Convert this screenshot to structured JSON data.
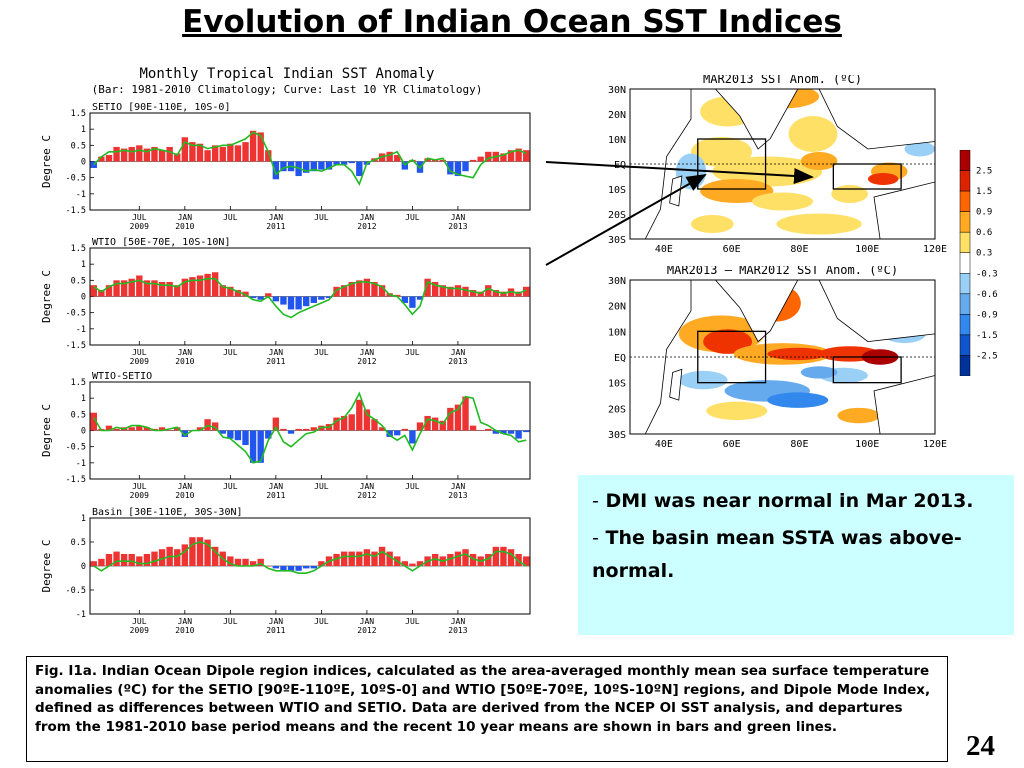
{
  "slide": {
    "title": "Evolution of Indian Ocean SST Indices",
    "number": "24"
  },
  "bullets": [
    {
      "dash": "-",
      "text": "DMI was near normal in Mar 2013."
    },
    {
      "dash": "-",
      "text": "The basin mean SSTA was above-normal."
    }
  ],
  "caption": "Fig. I1a. Indian Ocean Dipole region indices, calculated as the area-averaged monthly mean sea surface temperature anomalies (ºC) for the SETIO [90ºE-110ºE, 10ºS-0] and WTIO [50ºE-70ºE, 10ºS-10ºN] regions, and Dipole Mode Index, defined as differences between WTIO and SETIO. Data are derived from the NCEP OI SST analysis, and departures from the 1981-2010 base period means and the recent 10 year means are shown in bars and green lines.",
  "colors": {
    "positive_bar": "#ee3333",
    "negative_bar": "#2255ee",
    "curve": "#22bb22",
    "bullet_box": "#ccffff"
  },
  "chart_data": [
    {
      "type": "bar",
      "title": "Monthly Tropical Indian SST Anomaly",
      "subtitle": "(Bar: 1981-2010 Climatology; Curve: Last 10 YR Climatology)",
      "panel_label": "SETIO [90E-110E, 10S-0]",
      "ylabel": "Degree C",
      "ylim": [
        -1.5,
        1.5
      ],
      "yticks": [
        "1.5",
        "1",
        "0.5",
        "0",
        "-0.5",
        "-1",
        "-1.5"
      ],
      "xticks": [
        {
          "month": "JUL",
          "year": "2009"
        },
        {
          "month": "JAN",
          "year": "2010"
        },
        {
          "month": "JUL",
          "year": ""
        },
        {
          "month": "JAN",
          "year": "2011"
        },
        {
          "month": "JUL",
          "year": ""
        },
        {
          "month": "JAN",
          "year": "2012"
        },
        {
          "month": "JUL",
          "year": ""
        },
        {
          "month": "JAN",
          "year": "2013"
        }
      ],
      "x_start": "2009-01",
      "series": [
        {
          "values": [
            -0.2,
            0.15,
            0.2,
            0.45,
            0.4,
            0.45,
            0.5,
            0.4,
            0.45,
            0.35,
            0.45,
            0.25,
            0.75,
            0.6,
            0.55,
            0.35,
            0.5,
            0.45,
            0.55,
            0.5,
            0.6,
            0.95,
            0.9,
            0.35,
            -0.55,
            -0.3,
            -0.3,
            -0.45,
            -0.35,
            -0.3,
            -0.25,
            -0.25,
            -0.1,
            -0.1,
            -0.05,
            -0.45,
            -0.1,
            0.1,
            0.25,
            0.3,
            0.2,
            -0.25,
            0.05,
            -0.35,
            0.1,
            0.05,
            0.05,
            -0.4,
            -0.45,
            -0.3,
            0.05,
            0.15,
            0.3,
            0.3,
            0.25,
            0.35,
            0.4,
            0.35
          ]
        },
        {
          "values": [
            -0.1,
            0.15,
            0.3,
            0.3,
            0.35,
            0.3,
            0.35,
            0.3,
            0.4,
            0.35,
            0.3,
            0.2,
            0.6,
            0.5,
            0.5,
            0.4,
            0.45,
            0.5,
            0.5,
            0.6,
            0.7,
            0.9,
            0.8,
            0.3,
            -0.4,
            -0.2,
            -0.15,
            -0.2,
            -0.3,
            -0.25,
            -0.3,
            -0.2,
            -0.1,
            -0.1,
            -0.3,
            -0.7,
            -0.05,
            0.05,
            0.15,
            0.2,
            0.3,
            -0.1,
            0.05,
            -0.2,
            0.1,
            0.05,
            0.1,
            -0.3,
            -0.4,
            -0.45,
            -0.5,
            -0.1,
            0.1,
            0.15,
            0.2,
            0.3,
            0.35,
            0.25
          ]
        }
      ]
    },
    {
      "type": "bar",
      "panel_label": "WTIO [50E-70E, 10S-10N]",
      "ylabel": "Degree C",
      "ylim": [
        -1.5,
        1.5
      ],
      "yticks": [
        "1.5",
        "1",
        "0.5",
        "0",
        "-0.5",
        "-1",
        "-1.5"
      ],
      "xticks": [
        {
          "month": "JUL",
          "year": "2009"
        },
        {
          "month": "JAN",
          "year": "2010"
        },
        {
          "month": "JUL",
          "year": ""
        },
        {
          "month": "JAN",
          "year": "2011"
        },
        {
          "month": "JUL",
          "year": ""
        },
        {
          "month": "JAN",
          "year": "2012"
        },
        {
          "month": "JUL",
          "year": ""
        },
        {
          "month": "JAN",
          "year": "2013"
        }
      ],
      "x_start": "2009-01",
      "series": [
        {
          "values": [
            0.35,
            0.2,
            0.35,
            0.5,
            0.5,
            0.55,
            0.65,
            0.5,
            0.5,
            0.45,
            0.45,
            0.35,
            0.55,
            0.6,
            0.65,
            0.7,
            0.75,
            0.35,
            0.3,
            0.2,
            0.15,
            -0.05,
            -0.1,
            0.1,
            -0.15,
            -0.25,
            -0.4,
            -0.4,
            -0.3,
            -0.2,
            -0.1,
            -0.05,
            0.3,
            0.35,
            0.45,
            0.5,
            0.55,
            0.45,
            0.35,
            0.1,
            0.05,
            -0.2,
            -0.35,
            -0.1,
            0.55,
            0.45,
            0.35,
            0.3,
            0.35,
            0.3,
            0.2,
            0.15,
            0.35,
            0.2,
            0.15,
            0.25,
            0.15,
            0.3
          ]
        },
        {
          "values": [
            0.3,
            0.15,
            0.3,
            0.4,
            0.4,
            0.45,
            0.5,
            0.4,
            0.4,
            0.35,
            0.35,
            0.3,
            0.45,
            0.5,
            0.5,
            0.55,
            0.55,
            0.3,
            0.25,
            0.15,
            0.05,
            -0.1,
            -0.15,
            0.0,
            -0.3,
            -0.55,
            -0.65,
            -0.5,
            -0.4,
            -0.3,
            -0.2,
            -0.1,
            0.2,
            0.3,
            0.4,
            0.45,
            0.45,
            0.4,
            0.3,
            0.05,
            0.0,
            -0.25,
            -0.55,
            -0.3,
            0.45,
            0.35,
            0.3,
            0.25,
            0.25,
            0.2,
            0.15,
            0.1,
            0.25,
            0.15,
            0.1,
            0.15,
            0.1,
            0.2
          ]
        }
      ]
    },
    {
      "type": "bar",
      "panel_label": "WTIO-SETIO",
      "ylabel": "Degree C",
      "ylim": [
        -1.5,
        1.5
      ],
      "yticks": [
        "1.5",
        "1",
        "0.5",
        "0",
        "-0.5",
        "-1",
        "-1.5"
      ],
      "xticks": [
        {
          "month": "JUL",
          "year": "2009"
        },
        {
          "month": "JAN",
          "year": "2010"
        },
        {
          "month": "JUL",
          "year": ""
        },
        {
          "month": "JAN",
          "year": "2011"
        },
        {
          "month": "JUL",
          "year": ""
        },
        {
          "month": "JAN",
          "year": "2012"
        },
        {
          "month": "JUL",
          "year": ""
        },
        {
          "month": "JAN",
          "year": "2013"
        }
      ],
      "x_start": "2009-01",
      "series": [
        {
          "values": [
            0.55,
            0.05,
            0.15,
            0.05,
            0.1,
            0.1,
            0.15,
            0.1,
            0.05,
            0.1,
            0.0,
            0.1,
            -0.2,
            0.0,
            0.1,
            0.35,
            0.25,
            -0.1,
            -0.25,
            -0.3,
            -0.45,
            -1.0,
            -1.0,
            -0.25,
            0.4,
            0.05,
            -0.1,
            0.05,
            0.05,
            0.1,
            0.15,
            0.2,
            0.4,
            0.45,
            0.5,
            0.95,
            0.65,
            0.35,
            0.1,
            -0.2,
            -0.15,
            0.05,
            -0.4,
            0.25,
            0.45,
            0.4,
            0.3,
            0.7,
            0.8,
            1.05,
            0.15,
            0.0,
            0.05,
            -0.1,
            -0.1,
            -0.1,
            -0.25,
            -0.05
          ]
        },
        {
          "values": [
            0.4,
            0.0,
            0.0,
            0.1,
            0.05,
            0.15,
            0.15,
            0.1,
            0.0,
            0.0,
            0.05,
            0.1,
            -0.15,
            0.0,
            0.0,
            0.15,
            0.1,
            -0.2,
            -0.25,
            -0.45,
            -0.65,
            -1.0,
            -0.95,
            -0.3,
            0.1,
            -0.35,
            -0.5,
            -0.3,
            -0.1,
            -0.05,
            0.1,
            0.1,
            0.3,
            0.4,
            0.7,
            1.15,
            0.5,
            0.35,
            0.15,
            -0.15,
            -0.3,
            -0.15,
            -0.6,
            -0.1,
            0.35,
            0.3,
            0.2,
            0.55,
            0.65,
            1.05,
            1.0,
            0.25,
            0.15,
            0.0,
            -0.1,
            -0.15,
            -0.35,
            -0.3
          ]
        }
      ]
    },
    {
      "type": "bar",
      "panel_label": "Basin [30E-110E, 30S-30N]",
      "ylabel": "Degree C",
      "ylim": [
        -1,
        1
      ],
      "yticks": [
        "1",
        "0.5",
        "0",
        "-0.5",
        "-1"
      ],
      "xticks": [
        {
          "month": "JUL",
          "year": "2009"
        },
        {
          "month": "JAN",
          "year": "2010"
        },
        {
          "month": "JUL",
          "year": ""
        },
        {
          "month": "JAN",
          "year": "2011"
        },
        {
          "month": "JUL",
          "year": ""
        },
        {
          "month": "JAN",
          "year": "2012"
        },
        {
          "month": "JUL",
          "year": ""
        },
        {
          "month": "JAN",
          "year": "2013"
        }
      ],
      "x_start": "2009-01",
      "series": [
        {
          "values": [
            0.1,
            0.15,
            0.25,
            0.3,
            0.25,
            0.25,
            0.2,
            0.25,
            0.3,
            0.35,
            0.4,
            0.35,
            0.45,
            0.6,
            0.6,
            0.55,
            0.4,
            0.3,
            0.2,
            0.15,
            0.15,
            0.1,
            0.15,
            0.0,
            -0.05,
            -0.1,
            -0.1,
            -0.1,
            -0.05,
            -0.05,
            0.1,
            0.2,
            0.25,
            0.3,
            0.3,
            0.3,
            0.35,
            0.3,
            0.4,
            0.3,
            0.2,
            0.1,
            0.05,
            0.1,
            0.2,
            0.25,
            0.2,
            0.25,
            0.3,
            0.35,
            0.25,
            0.2,
            0.25,
            0.4,
            0.4,
            0.35,
            0.25,
            0.2
          ]
        },
        {
          "values": [
            0.0,
            -0.1,
            0.0,
            0.1,
            0.1,
            0.1,
            0.05,
            0.05,
            0.1,
            0.15,
            0.2,
            0.2,
            0.3,
            0.45,
            0.5,
            0.45,
            0.3,
            0.15,
            0.05,
            0.0,
            0.0,
            0.0,
            0.05,
            -0.05,
            -0.1,
            -0.1,
            -0.1,
            -0.15,
            -0.15,
            -0.1,
            0.0,
            0.1,
            0.15,
            0.2,
            0.2,
            0.2,
            0.25,
            0.2,
            0.3,
            0.2,
            0.1,
            0.0,
            -0.1,
            0.0,
            0.1,
            0.15,
            0.1,
            0.15,
            0.2,
            0.25,
            0.15,
            0.1,
            0.15,
            0.3,
            0.3,
            0.25,
            0.1,
            0.0
          ]
        }
      ]
    },
    {
      "type": "heatmap",
      "title": "MAR2013 SST Anom. (ºC)",
      "lat_labels": [
        "30N",
        "20N",
        "10N",
        "EQ",
        "10S",
        "20S",
        "30S"
      ],
      "lon_labels": [
        "40E",
        "60E",
        "80E",
        "100E",
        "120E"
      ],
      "boxes": [
        {
          "region": "WTIO",
          "lon": [
            50,
            70
          ],
          "lat": [
            -10,
            10
          ]
        },
        {
          "region": "SETIO",
          "lon": [
            90,
            110
          ],
          "lat": [
            -10,
            0
          ]
        }
      ]
    },
    {
      "type": "heatmap",
      "title": "MAR2013 – MAR2012 SST Anom. (ºC)",
      "lat_labels": [
        "30N",
        "20N",
        "10N",
        "EQ",
        "10S",
        "20S",
        "30S"
      ],
      "lon_labels": [
        "40E",
        "60E",
        "80E",
        "100E",
        "120E"
      ],
      "boxes": [
        {
          "region": "WTIO",
          "lon": [
            50,
            70
          ],
          "lat": [
            -10,
            10
          ]
        },
        {
          "region": "SETIO",
          "lon": [
            90,
            110
          ],
          "lat": [
            -10,
            0
          ]
        }
      ]
    },
    {
      "type": "colorbar",
      "levels": [
        "2.5",
        "1.5",
        "0.9",
        "0.6",
        "0.3",
        "-0.3",
        "-0.6",
        "-0.9",
        "-1.5",
        "-2.5"
      ],
      "colors": [
        "#aa0000",
        "#dd2200",
        "#ff6600",
        "#ffaa22",
        "#ffe066",
        "#ffffff",
        "#9ad0f5",
        "#66aaee",
        "#3388ee",
        "#1155cc",
        "#003399"
      ]
    }
  ]
}
